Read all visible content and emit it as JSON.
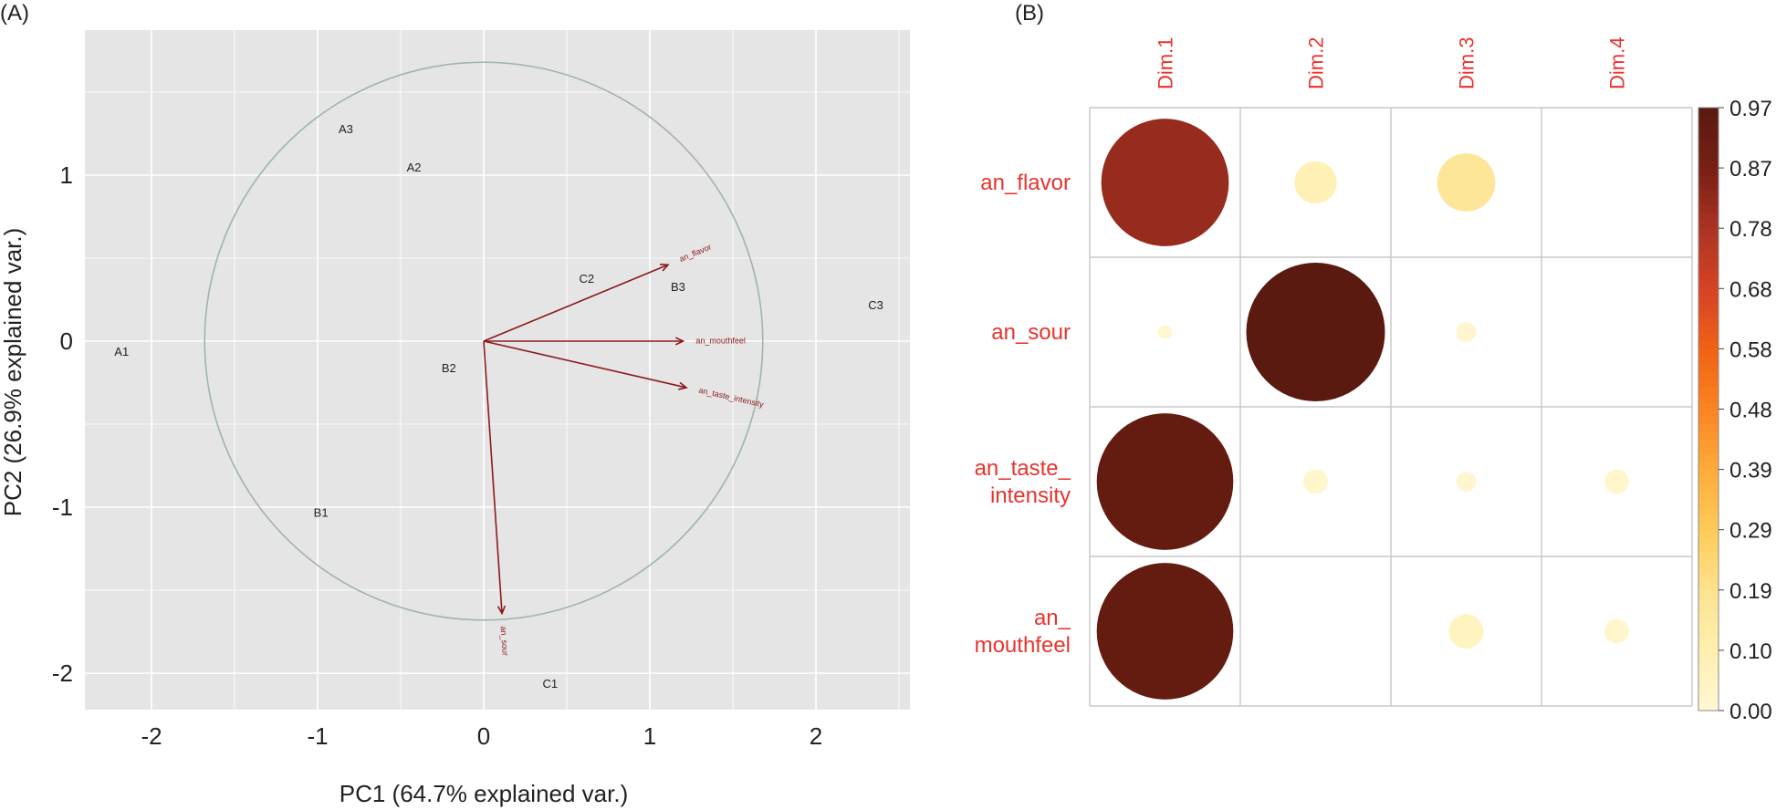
{
  "chart_data": [
    {
      "type": "scatter",
      "panel_label": "(A)",
      "xlabel": "PC1 (64.7% explained var.)",
      "ylabel": "PC2 (26.9% explained var.)",
      "xlim": [
        -2.4,
        2.6
      ],
      "ylim": [
        -2.25,
        1.9
      ],
      "x_ticks": [
        {
          "value": -2,
          "label": "-2"
        },
        {
          "value": -1,
          "label": "-1"
        },
        {
          "value": 0,
          "label": "0"
        },
        {
          "value": 1,
          "label": "1"
        },
        {
          "value": 2,
          "label": "2"
        }
      ],
      "y_ticks": [
        {
          "value": -2,
          "label": "-2"
        },
        {
          "value": -1,
          "label": "-1"
        },
        {
          "value": 0,
          "label": "0"
        },
        {
          "value": 1,
          "label": "1"
        }
      ],
      "grid": true,
      "correlation_circle_radius": 1.68,
      "points": [
        {
          "label": "A1",
          "x": -2.18,
          "y": -0.06
        },
        {
          "label": "A2",
          "x": -0.42,
          "y": 1.05
        },
        {
          "label": "A3",
          "x": -0.83,
          "y": 1.28
        },
        {
          "label": "B1",
          "x": -0.98,
          "y": -1.03
        },
        {
          "label": "B2",
          "x": -0.21,
          "y": -0.16
        },
        {
          "label": "B3",
          "x": 1.17,
          "y": 0.33
        },
        {
          "label": "C1",
          "x": 0.4,
          "y": -2.06
        },
        {
          "label": "C2",
          "x": 0.62,
          "y": 0.38
        },
        {
          "label": "C3",
          "x": 2.36,
          "y": 0.22
        }
      ],
      "vectors": [
        {
          "label": "an_flavor",
          "x": 1.11,
          "y": 0.46
        },
        {
          "label": "an_mouthfeel",
          "x": 1.2,
          "y": 0.0
        },
        {
          "label": "an_taste_intensity",
          "x": 1.22,
          "y": -0.28
        },
        {
          "label": "an_sour",
          "x": 0.11,
          "y": -1.64
        }
      ],
      "colors": {
        "panel_bg": "#e5e5e5",
        "grid": "#ffffff",
        "circle": "#9fb5a5",
        "vector": "#8b1a1a"
      }
    },
    {
      "type": "heatmap",
      "panel_label": "(B)",
      "columns": [
        "Dim.1",
        "Dim.2",
        "Dim.3",
        "Dim.4"
      ],
      "rows": [
        {
          "label_lines": [
            "an_flavor"
          ],
          "values": [
            0.82,
            0.09,
            0.17,
            0.0
          ]
        },
        {
          "label_lines": [
            "an_sour"
          ],
          "values": [
            0.01,
            0.97,
            0.02,
            0.0
          ]
        },
        {
          "label_lines": [
            "an_taste_",
            "intensity"
          ],
          "values": [
            0.94,
            0.03,
            0.02,
            0.03
          ]
        },
        {
          "label_lines": [
            "an_",
            "mouthfeel"
          ],
          "values": [
            0.94,
            0.0,
            0.06,
            0.03
          ]
        }
      ],
      "colorbar": {
        "min": 0.0,
        "max": 0.97,
        "tick_labels": [
          "0.97",
          "0.87",
          "0.78",
          "0.68",
          "0.58",
          "0.48",
          "0.39",
          "0.29",
          "0.19",
          "0.10",
          "0.00"
        ]
      },
      "colors": {
        "label": "#e8332e",
        "grid": "#c8c8c8"
      }
    }
  ]
}
